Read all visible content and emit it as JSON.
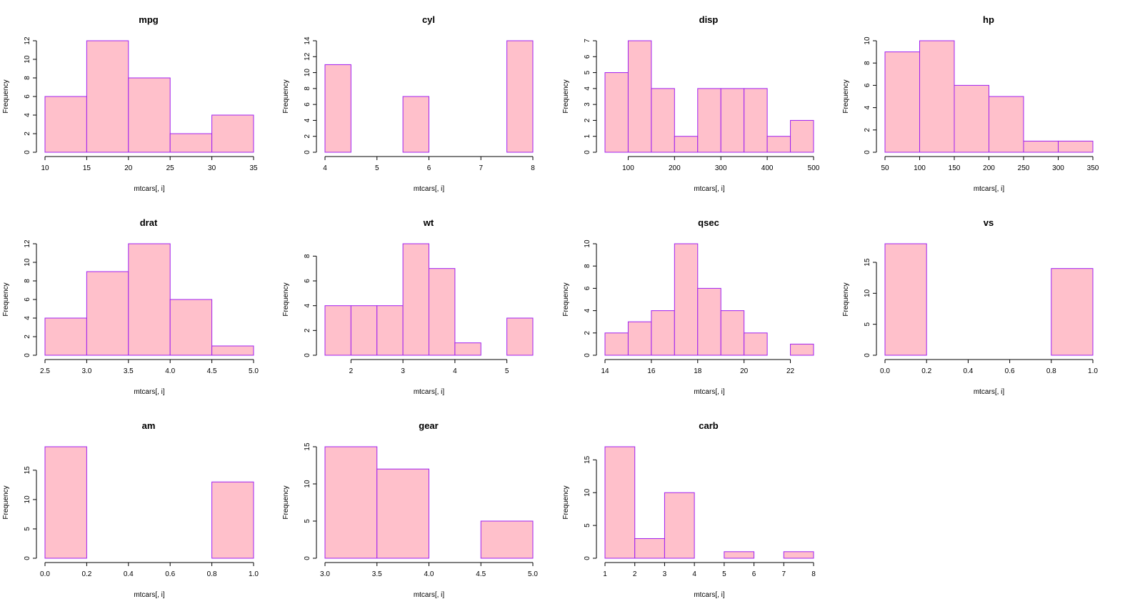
{
  "colors": {
    "bar_fill": "#FFC0CB",
    "bar_stroke": "#A020F0",
    "axis": "#000000",
    "background": "#FFFFFF"
  },
  "chart_data": [
    {
      "type": "bar",
      "title": "mpg",
      "xlabel": "mtcars[, i]",
      "ylabel": "Frequency",
      "breaks": [
        10,
        15,
        20,
        25,
        30,
        35
      ],
      "values": [
        6,
        12,
        8,
        2,
        4
      ],
      "xticks": [
        10,
        15,
        20,
        25,
        30,
        35
      ],
      "yticks": [
        0,
        2,
        4,
        6,
        8,
        10,
        12
      ],
      "ylim": [
        0,
        12
      ]
    },
    {
      "type": "bar",
      "title": "cyl",
      "xlabel": "mtcars[, i]",
      "ylabel": "Frequency",
      "breaks": [
        4,
        4.5,
        5,
        5.5,
        6,
        6.5,
        7,
        7.5,
        8
      ],
      "values": [
        11,
        0,
        0,
        7,
        0,
        0,
        0,
        14
      ],
      "xticks": [
        4,
        5,
        6,
        7,
        8
      ],
      "yticks": [
        0,
        2,
        4,
        6,
        8,
        10,
        12,
        14
      ],
      "ylim": [
        0,
        14
      ]
    },
    {
      "type": "bar",
      "title": "disp",
      "xlabel": "mtcars[, i]",
      "ylabel": "Frequency",
      "breaks": [
        50,
        100,
        150,
        200,
        250,
        300,
        350,
        400,
        450,
        500
      ],
      "values": [
        5,
        7,
        4,
        1,
        4,
        4,
        4,
        1,
        2
      ],
      "xticks": [
        100,
        200,
        300,
        400,
        500
      ],
      "yticks": [
        0,
        1,
        2,
        3,
        4,
        5,
        6,
        7
      ],
      "ylim": [
        0,
        7
      ]
    },
    {
      "type": "bar",
      "title": "hp",
      "xlabel": "mtcars[, i]",
      "ylabel": "Frequency",
      "breaks": [
        50,
        100,
        150,
        200,
        250,
        300,
        350
      ],
      "values": [
        9,
        10,
        6,
        5,
        1,
        1
      ],
      "xticks": [
        50,
        100,
        150,
        200,
        250,
        300,
        350
      ],
      "yticks": [
        0,
        2,
        4,
        6,
        8,
        10
      ],
      "ylim": [
        0,
        10
      ]
    },
    {
      "type": "bar",
      "title": "drat",
      "xlabel": "mtcars[, i]",
      "ylabel": "Frequency",
      "breaks": [
        2.5,
        3.0,
        3.5,
        4.0,
        4.5,
        5.0
      ],
      "values": [
        4,
        9,
        12,
        6,
        1
      ],
      "xticks": [
        "2.5",
        "3.0",
        "3.5",
        "4.0",
        "4.5",
        "5.0"
      ],
      "yticks": [
        0,
        2,
        4,
        6,
        8,
        10,
        12
      ],
      "ylim": [
        0,
        12
      ]
    },
    {
      "type": "bar",
      "title": "wt",
      "xlabel": "mtcars[, i]",
      "ylabel": "Frequency",
      "breaks": [
        1.5,
        2,
        2.5,
        3,
        3.5,
        4,
        4.5,
        5,
        5.5
      ],
      "values": [
        4,
        4,
        4,
        9,
        7,
        1,
        0,
        3
      ],
      "xticks": [
        2,
        3,
        4,
        5
      ],
      "yticks": [
        0,
        2,
        4,
        6,
        8
      ],
      "ylim": [
        0,
        9
      ]
    },
    {
      "type": "bar",
      "title": "qsec",
      "xlabel": "mtcars[, i]",
      "ylabel": "Frequency",
      "breaks": [
        14,
        15,
        16,
        17,
        18,
        19,
        20,
        21,
        22,
        23
      ],
      "values": [
        2,
        3,
        4,
        10,
        6,
        4,
        2,
        0,
        1
      ],
      "xticks": [
        14,
        16,
        18,
        20,
        22
      ],
      "yticks": [
        0,
        2,
        4,
        6,
        8,
        10
      ],
      "ylim": [
        0,
        10
      ]
    },
    {
      "type": "bar",
      "title": "vs",
      "xlabel": "mtcars[, i]",
      "ylabel": "Frequency",
      "breaks": [
        0.0,
        0.2,
        0.4,
        0.6,
        0.8,
        1.0
      ],
      "values": [
        18,
        0,
        0,
        0,
        14
      ],
      "xticks": [
        "0.0",
        "0.2",
        "0.4",
        "0.6",
        "0.8",
        "1.0"
      ],
      "yticks": [
        0,
        5,
        10,
        15
      ],
      "ylim": [
        0,
        18
      ]
    },
    {
      "type": "bar",
      "title": "am",
      "xlabel": "mtcars[, i]",
      "ylabel": "Frequency",
      "breaks": [
        0.0,
        0.2,
        0.4,
        0.6,
        0.8,
        1.0
      ],
      "values": [
        19,
        0,
        0,
        0,
        13
      ],
      "xticks": [
        "0.0",
        "0.2",
        "0.4",
        "0.6",
        "0.8",
        "1.0"
      ],
      "yticks": [
        0,
        5,
        10,
        15
      ],
      "ylim": [
        0,
        19
      ]
    },
    {
      "type": "bar",
      "title": "gear",
      "xlabel": "mtcars[, i]",
      "ylabel": "Frequency",
      "breaks": [
        3.0,
        3.5,
        4.0,
        4.5,
        5.0
      ],
      "values": [
        15,
        12,
        0,
        5
      ],
      "xticks": [
        "3.0",
        "3.5",
        "4.0",
        "4.5",
        "5.0"
      ],
      "yticks": [
        0,
        5,
        10,
        15
      ],
      "ylim": [
        0,
        15
      ]
    },
    {
      "type": "bar",
      "title": "carb",
      "xlabel": "mtcars[, i]",
      "ylabel": "Frequency",
      "breaks": [
        1,
        2,
        3,
        4,
        5,
        6,
        7,
        8
      ],
      "values": [
        17,
        3,
        10,
        0,
        1,
        0,
        1
      ],
      "xticks": [
        1,
        2,
        3,
        4,
        5,
        6,
        7,
        8
      ],
      "yticks": [
        0,
        5,
        10,
        15
      ],
      "ylim": [
        0,
        17
      ]
    }
  ]
}
